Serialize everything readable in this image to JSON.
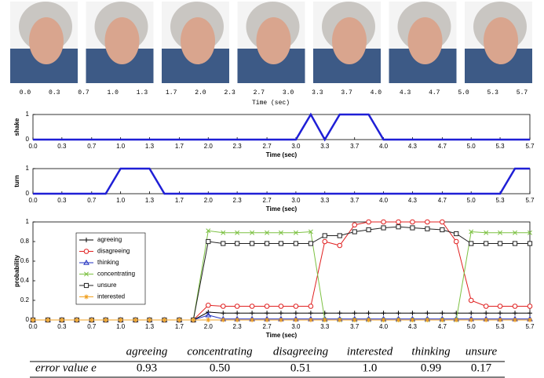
{
  "photo_strip": {
    "tick_labels": [
      "0.0",
      "0.3",
      "0.7",
      "1.0",
      "1.3",
      "1.7",
      "2.0",
      "2.3",
      "2.7",
      "3.0",
      "3.3",
      "3.7",
      "4.0",
      "4.3",
      "4.7",
      "5.0",
      "5.3",
      "5.7"
    ],
    "xlabel": "Time (sec)"
  },
  "chart_data": [
    {
      "type": "line",
      "ylabel": "shake",
      "xlabel": "Time (sec)",
      "color": "#1f1fd6",
      "x": [
        0,
        3.0,
        3.17,
        3.33,
        3.5,
        3.83,
        4.0,
        5.67
      ],
      "values": [
        0,
        0,
        1,
        0,
        1,
        1,
        0,
        0
      ],
      "xlim": [
        0,
        5.67
      ],
      "ylim": [
        0,
        1
      ],
      "yticks": [
        0,
        1
      ],
      "xticks": [
        {
          "value": 0,
          "label": "0.0"
        },
        {
          "value": 0.33,
          "label": "0.3"
        },
        {
          "value": 0.67,
          "label": "0.7"
        },
        {
          "value": 1,
          "label": "1.0"
        },
        {
          "value": 1.33,
          "label": "1.3"
        },
        {
          "value": 1.67,
          "label": "1.7"
        },
        {
          "value": 2,
          "label": "2.0"
        },
        {
          "value": 2.33,
          "label": "2.3"
        },
        {
          "value": 2.67,
          "label": "2.7"
        },
        {
          "value": 3,
          "label": "3.0"
        },
        {
          "value": 3.33,
          "label": "3.3"
        },
        {
          "value": 3.67,
          "label": "3.7"
        },
        {
          "value": 4,
          "label": "4.0"
        },
        {
          "value": 4.33,
          "label": "4.3"
        },
        {
          "value": 4.67,
          "label": "4.7"
        },
        {
          "value": 5,
          "label": "5.0"
        },
        {
          "value": 5.33,
          "label": "5.3"
        },
        {
          "value": 5.67,
          "label": "5.7"
        }
      ]
    },
    {
      "type": "line",
      "ylabel": "turn",
      "xlabel": "Time (sec)",
      "color": "#1f1fd6",
      "x": [
        0,
        0.83,
        1.0,
        1.33,
        1.5,
        5.33,
        5.5,
        5.67
      ],
      "values": [
        0,
        0,
        1,
        1,
        0,
        0,
        1,
        1
      ],
      "xlim": [
        0,
        5.67
      ],
      "ylim": [
        0,
        1
      ],
      "yticks": [
        0,
        1
      ],
      "xticks": [
        {
          "value": 0,
          "label": "0.0"
        },
        {
          "value": 0.33,
          "label": "0.3"
        },
        {
          "value": 0.67,
          "label": "0.7"
        },
        {
          "value": 1,
          "label": "1.0"
        },
        {
          "value": 1.33,
          "label": "1.3"
        },
        {
          "value": 1.67,
          "label": "1.7"
        },
        {
          "value": 2,
          "label": "2.0"
        },
        {
          "value": 2.33,
          "label": "2.3"
        },
        {
          "value": 2.67,
          "label": "2.7"
        },
        {
          "value": 3,
          "label": "3.0"
        },
        {
          "value": 3.33,
          "label": "3.3"
        },
        {
          "value": 3.67,
          "label": "3.7"
        },
        {
          "value": 4,
          "label": "4.0"
        },
        {
          "value": 4.33,
          "label": "4.3"
        },
        {
          "value": 4.67,
          "label": "4.7"
        },
        {
          "value": 5,
          "label": "5.0"
        },
        {
          "value": 5.33,
          "label": "5.3"
        },
        {
          "value": 5.67,
          "label": "5.7"
        }
      ]
    },
    {
      "type": "line",
      "ylabel": "probability",
      "xlabel": "Time (sec)",
      "legend": "upper left",
      "x": [
        0,
        0.17,
        0.33,
        0.5,
        0.67,
        0.83,
        1,
        1.17,
        1.33,
        1.5,
        1.67,
        1.83,
        2,
        2.17,
        2.33,
        2.5,
        2.67,
        2.83,
        3,
        3.17,
        3.33,
        3.5,
        3.67,
        3.83,
        4,
        4.17,
        4.33,
        4.5,
        4.67,
        4.83,
        5,
        5.17,
        5.33,
        5.5,
        5.67
      ],
      "series": [
        {
          "name": "agreeing",
          "color": "#000000",
          "marker": "plus",
          "values": [
            0,
            0,
            0,
            0,
            0,
            0,
            0,
            0,
            0,
            0,
            0,
            0,
            0.08,
            0.07,
            0.07,
            0.07,
            0.07,
            0.07,
            0.07,
            0.07,
            0.07,
            0.07,
            0.07,
            0.07,
            0.07,
            0.07,
            0.07,
            0.07,
            0.07,
            0.07,
            0.07,
            0.07,
            0.07,
            0.07,
            0.07
          ]
        },
        {
          "name": "disagreeing",
          "color": "#e02020",
          "marker": "circle",
          "values": [
            0,
            0,
            0,
            0,
            0,
            0,
            0,
            0,
            0,
            0,
            0,
            0,
            0.15,
            0.14,
            0.14,
            0.14,
            0.14,
            0.14,
            0.14,
            0.14,
            0.8,
            0.76,
            0.97,
            1,
            1,
            1,
            1,
            1,
            1,
            0.8,
            0.2,
            0.14,
            0.14,
            0.14,
            0.14
          ]
        },
        {
          "name": "thinking",
          "color": "#2030c0",
          "marker": "triangle",
          "values": [
            0,
            0,
            0,
            0,
            0,
            0,
            0,
            0,
            0,
            0,
            0,
            0,
            0.05,
            0.01,
            0.01,
            0.01,
            0.01,
            0.01,
            0.01,
            0.01,
            0.01,
            0.01,
            0.01,
            0.01,
            0.01,
            0.01,
            0.01,
            0.01,
            0.01,
            0.01,
            0.01,
            0.01,
            0.01,
            0.01,
            0.01
          ]
        },
        {
          "name": "concentrating",
          "color": "#7cc142",
          "marker": "x",
          "values": [
            0,
            0,
            0,
            0,
            0,
            0,
            0,
            0,
            0,
            0,
            0,
            0,
            0.91,
            0.89,
            0.89,
            0.89,
            0.89,
            0.89,
            0.89,
            0.9,
            0,
            0,
            0,
            0,
            0,
            0,
            0,
            0,
            0,
            0,
            0.9,
            0.89,
            0.89,
            0.89,
            0.89
          ]
        },
        {
          "name": "unsure",
          "color": "#222222",
          "marker": "square",
          "values": [
            0,
            0,
            0,
            0,
            0,
            0,
            0,
            0,
            0,
            0,
            0,
            0,
            0.8,
            0.78,
            0.78,
            0.78,
            0.78,
            0.78,
            0.78,
            0.78,
            0.86,
            0.86,
            0.9,
            0.92,
            0.94,
            0.95,
            0.94,
            0.93,
            0.92,
            0.88,
            0.78,
            0.78,
            0.78,
            0.78,
            0.78
          ]
        },
        {
          "name": "interested",
          "color": "#f0a020",
          "marker": "star",
          "values": [
            0,
            0,
            0,
            0,
            0,
            0,
            0,
            0,
            0,
            0,
            0,
            0,
            0,
            0,
            0,
            0,
            0,
            0,
            0,
            0,
            0,
            0,
            0,
            0,
            0,
            0,
            0,
            0,
            0,
            0,
            0,
            0,
            0,
            0,
            0
          ]
        }
      ],
      "xlim": [
        0,
        5.67
      ],
      "ylim": [
        0,
        1
      ],
      "yticks": [
        0,
        0.2,
        0.4,
        0.6,
        0.8,
        1
      ],
      "xticks": [
        {
          "value": 0,
          "label": "0.0"
        },
        {
          "value": 0.33,
          "label": "0.3"
        },
        {
          "value": 0.67,
          "label": "0.7"
        },
        {
          "value": 1,
          "label": "1.0"
        },
        {
          "value": 1.33,
          "label": "1.3"
        },
        {
          "value": 1.67,
          "label": "1.7"
        },
        {
          "value": 2,
          "label": "2.0"
        },
        {
          "value": 2.33,
          "label": "2.3"
        },
        {
          "value": 2.67,
          "label": "2.7"
        },
        {
          "value": 3,
          "label": "3.0"
        },
        {
          "value": 3.33,
          "label": "3.3"
        },
        {
          "value": 3.67,
          "label": "3.7"
        },
        {
          "value": 4,
          "label": "4.0"
        },
        {
          "value": 4.33,
          "label": "4.3"
        },
        {
          "value": 4.67,
          "label": "4.7"
        },
        {
          "value": 5,
          "label": "5.0"
        },
        {
          "value": 5.33,
          "label": "5.3"
        },
        {
          "value": 5.67,
          "label": "5.7"
        }
      ]
    }
  ],
  "table": {
    "columns": [
      "agreeing",
      "concentrating",
      "disagreeing",
      "interested",
      "thinking",
      "unsure"
    ],
    "row_label": "error value e",
    "values": [
      "0.93",
      "0.50",
      "0.51",
      "1.0",
      "0.99",
      "0.17"
    ]
  }
}
